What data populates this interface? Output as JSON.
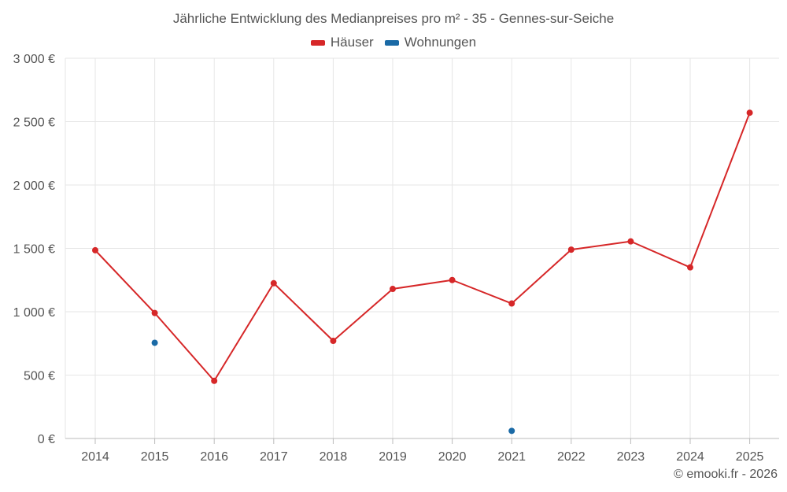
{
  "chart_data": {
    "type": "line",
    "title": "Jährliche Entwicklung des Medianpreises pro m² - 35 - Gennes-sur-Seiche",
    "categories": [
      "2014",
      "2015",
      "2016",
      "2017",
      "2018",
      "2019",
      "2020",
      "2021",
      "2022",
      "2023",
      "2024",
      "2025"
    ],
    "y_tick_values": [
      0,
      500,
      1000,
      1500,
      2000,
      2500,
      3000
    ],
    "y_tick_labels": [
      "0 €",
      "500 €",
      "1 000 €",
      "1 500 €",
      "2 000 €",
      "2 500 €",
      "3 000 €"
    ],
    "ylim": [
      0,
      3000
    ],
    "grid": true,
    "legend_position": "top-center",
    "series": [
      {
        "name": "Häuser",
        "color": "#d62728",
        "values": [
          1485,
          990,
          455,
          1225,
          770,
          1180,
          1250,
          1065,
          1490,
          1555,
          1350,
          2570
        ]
      },
      {
        "name": "Wohnungen",
        "color": "#1a6aa6",
        "values": [
          null,
          755,
          null,
          null,
          null,
          null,
          null,
          60,
          null,
          null,
          null,
          null
        ]
      }
    ],
    "credit": "© emooki.fr - 2026"
  }
}
